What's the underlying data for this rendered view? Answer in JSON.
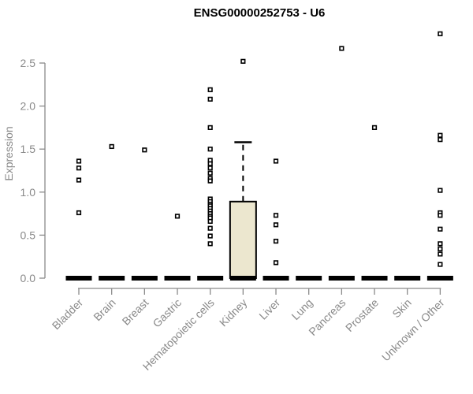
{
  "chart_data": {
    "type": "boxplot",
    "title": "ENSG00000252753 - U6",
    "ylabel": "Expression",
    "xlabel": "",
    "ylim": [
      0,
      2.9
    ],
    "yticks": [
      0,
      0.5,
      1,
      1.5,
      2,
      2.5
    ],
    "grid": false,
    "legend": "none",
    "categories": [
      "Bladder",
      "Brain",
      "Breast",
      "Gastric",
      "Hematopoietic cells",
      "Kidney",
      "Liver",
      "Lung",
      "Pancreas",
      "Prostate",
      "Skin",
      "Unknown / Other"
    ],
    "groups": [
      {
        "category": "Bladder",
        "median": 0,
        "q1": 0,
        "q3": 0,
        "whisker_low": 0,
        "whisker_high": 0,
        "outliers": [
          1.36,
          1.28,
          1.14,
          0.76
        ]
      },
      {
        "category": "Brain",
        "median": 0,
        "q1": 0,
        "q3": 0,
        "whisker_low": 0,
        "whisker_high": 0,
        "outliers": [
          1.53
        ]
      },
      {
        "category": "Breast",
        "median": 0,
        "q1": 0,
        "q3": 0,
        "whisker_low": 0,
        "whisker_high": 0,
        "outliers": [
          1.49
        ]
      },
      {
        "category": "Gastric",
        "median": 0,
        "q1": 0,
        "q3": 0,
        "whisker_low": 0,
        "whisker_high": 0,
        "outliers": [
          0.72
        ]
      },
      {
        "category": "Hematopoietic cells",
        "median": 0,
        "q1": 0,
        "q3": 0,
        "whisker_low": 0,
        "whisker_high": 0,
        "outliers": [
          2.19,
          2.08,
          1.75,
          1.5,
          1.37,
          1.33,
          1.28,
          1.22,
          1.16,
          1.13,
          0.92,
          0.89,
          0.86,
          0.84,
          0.81,
          0.78,
          0.75,
          0.72,
          0.7,
          0.66,
          0.58,
          0.49,
          0.4
        ]
      },
      {
        "category": "Kidney",
        "median": 0,
        "q1": 0,
        "q3": 0.89,
        "whisker_low": 0,
        "whisker_high": 1.58,
        "outliers": [
          2.52
        ]
      },
      {
        "category": "Liver",
        "median": 0,
        "q1": 0,
        "q3": 0,
        "whisker_low": 0,
        "whisker_high": 0,
        "outliers": [
          1.36,
          0.73,
          0.62,
          0.43,
          0.18
        ]
      },
      {
        "category": "Lung",
        "median": 0,
        "q1": 0,
        "q3": 0,
        "whisker_low": 0,
        "whisker_high": 0,
        "outliers": []
      },
      {
        "category": "Pancreas",
        "median": 0,
        "q1": 0,
        "q3": 0,
        "whisker_low": 0,
        "whisker_high": 0,
        "outliers": [
          2.67
        ]
      },
      {
        "category": "Prostate",
        "median": 0,
        "q1": 0,
        "q3": 0,
        "whisker_low": 0,
        "whisker_high": 0,
        "outliers": [
          1.75
        ]
      },
      {
        "category": "Skin",
        "median": 0,
        "q1": 0,
        "q3": 0,
        "whisker_low": 0,
        "whisker_high": 0,
        "outliers": []
      },
      {
        "category": "Unknown / Other",
        "median": 0,
        "q1": 0,
        "q3": 0,
        "whisker_low": 0,
        "whisker_high": 0,
        "outliers": [
          2.84,
          1.66,
          1.61,
          1.02,
          0.76,
          0.73,
          0.57,
          0.4,
          0.34,
          0.28,
          0.16
        ]
      }
    ],
    "style": {
      "box_fill": "#ece7cf",
      "mark_color": "#000000",
      "point_fill": "#ffffff",
      "axis_color": "#8a8a8a",
      "title_color": "#000000"
    }
  }
}
